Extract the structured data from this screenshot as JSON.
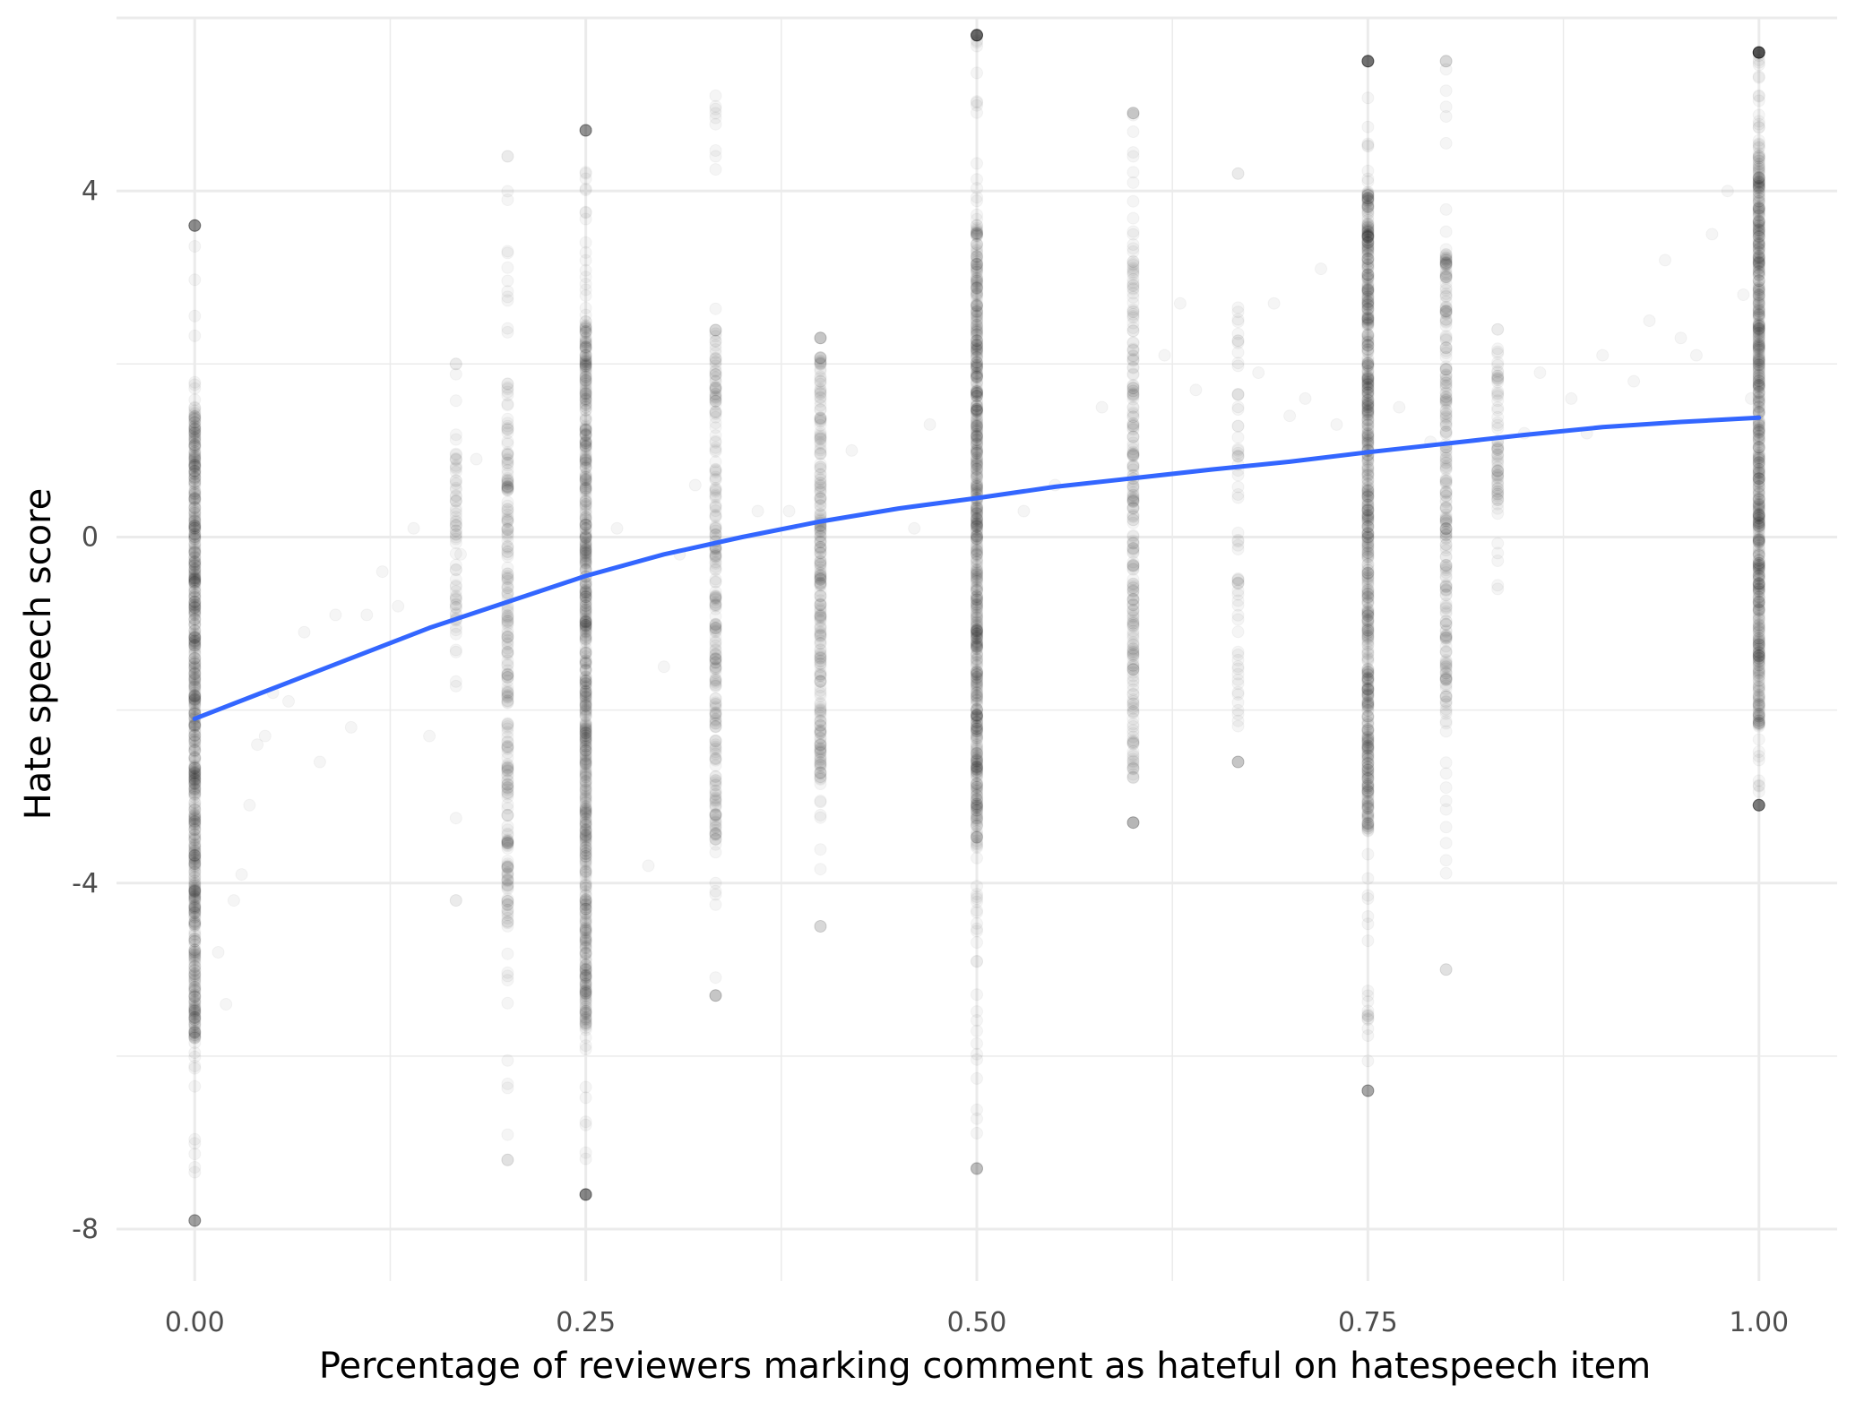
{
  "chart_data": {
    "type": "scatter",
    "title": "",
    "xlabel": "Percentage of reviewers marking comment as hateful on hatespeech item",
    "ylabel": "Hate speech score",
    "xlim": [
      -0.05,
      1.05
    ],
    "ylim": [
      -8.6,
      6.0
    ],
    "x_ticks": [
      0,
      0.25,
      0.5,
      0.75,
      1
    ],
    "x_tick_labels": [
      "0.00",
      "0.25",
      "0.50",
      "0.75",
      "1.00"
    ],
    "y_ticks": [
      -8,
      -4,
      0,
      4
    ],
    "y_tick_labels": [
      "-8",
      "-4",
      "0",
      "4"
    ],
    "grid": true,
    "legend": "none",
    "point_color": "#000000",
    "point_opacity": 0.04,
    "columns": [
      {
        "x": 0.0,
        "ymin": -7.9,
        "ymax": 3.6,
        "q1": -5.8,
        "q3": 1.5,
        "density": "high"
      },
      {
        "x": 0.167,
        "ymin": -4.2,
        "ymax": 2.0,
        "q1": -1.5,
        "q3": 1.0,
        "density": "low"
      },
      {
        "x": 0.2,
        "ymin": -7.2,
        "ymax": 4.4,
        "q1": -4.5,
        "q3": 1.8,
        "density": "medium"
      },
      {
        "x": 0.25,
        "ymin": -7.6,
        "ymax": 4.7,
        "q1": -5.7,
        "q3": 2.5,
        "density": "high"
      },
      {
        "x": 0.333,
        "ymin": -5.3,
        "ymax": 5.1,
        "q1": -3.5,
        "q3": 2.4,
        "density": "medium"
      },
      {
        "x": 0.4,
        "ymin": -4.5,
        "ymax": 2.3,
        "q1": -2.8,
        "q3": 2.1,
        "density": "medium"
      },
      {
        "x": 0.5,
        "ymin": -7.3,
        "ymax": 5.8,
        "q1": -3.6,
        "q3": 3.6,
        "density": "high"
      },
      {
        "x": 0.6,
        "ymin": -3.3,
        "ymax": 4.9,
        "q1": -2.8,
        "q3": 3.2,
        "density": "medium"
      },
      {
        "x": 0.667,
        "ymin": -2.6,
        "ymax": 4.2,
        "q1": -2.2,
        "q3": 2.7,
        "density": "low"
      },
      {
        "x": 0.75,
        "ymin": -6.4,
        "ymax": 5.5,
        "q1": -3.4,
        "q3": 4.0,
        "density": "high"
      },
      {
        "x": 0.8,
        "ymin": -5.0,
        "ymax": 5.5,
        "q1": -2.2,
        "q3": 3.3,
        "density": "medium"
      },
      {
        "x": 0.833,
        "ymin": -0.6,
        "ymax": 2.4,
        "q1": 0.3,
        "q3": 2.2,
        "density": "low"
      },
      {
        "x": 1.0,
        "ymin": -3.1,
        "ymax": 5.6,
        "q1": -2.2,
        "q3": 4.5,
        "density": "high"
      }
    ],
    "scattered_points": [
      [
        0.015,
        -4.8
      ],
      [
        0.02,
        -5.4
      ],
      [
        0.025,
        -4.2
      ],
      [
        0.03,
        -3.9
      ],
      [
        0.035,
        -3.1
      ],
      [
        0.04,
        -2.4
      ],
      [
        0.045,
        -2.3
      ],
      [
        0.05,
        -1.8
      ],
      [
        0.06,
        -1.9
      ],
      [
        0.07,
        -1.1
      ],
      [
        0.08,
        -2.6
      ],
      [
        0.09,
        -0.9
      ],
      [
        0.1,
        -2.2
      ],
      [
        0.11,
        -0.9
      ],
      [
        0.12,
        -0.4
      ],
      [
        0.13,
        -0.8
      ],
      [
        0.14,
        0.1
      ],
      [
        0.15,
        -2.3
      ],
      [
        0.17,
        -0.2
      ],
      [
        0.18,
        0.9
      ],
      [
        0.27,
        0.1
      ],
      [
        0.29,
        -3.8
      ],
      [
        0.3,
        -1.5
      ],
      [
        0.31,
        -0.2
      ],
      [
        0.32,
        0.6
      ],
      [
        0.36,
        0.3
      ],
      [
        0.38,
        0.3
      ],
      [
        0.42,
        1.0
      ],
      [
        0.46,
        0.1
      ],
      [
        0.47,
        1.3
      ],
      [
        0.53,
        0.3
      ],
      [
        0.55,
        0.6
      ],
      [
        0.58,
        1.5
      ],
      [
        0.62,
        2.1
      ],
      [
        0.63,
        2.7
      ],
      [
        0.64,
        1.7
      ],
      [
        0.68,
        1.9
      ],
      [
        0.69,
        2.7
      ],
      [
        0.7,
        1.4
      ],
      [
        0.71,
        1.6
      ],
      [
        0.72,
        3.1
      ],
      [
        0.73,
        1.3
      ],
      [
        0.77,
        1.5
      ],
      [
        0.79,
        1.1
      ],
      [
        0.85,
        1.2
      ],
      [
        0.86,
        1.9
      ],
      [
        0.88,
        1.6
      ],
      [
        0.89,
        1.2
      ],
      [
        0.9,
        2.1
      ],
      [
        0.92,
        1.8
      ],
      [
        0.93,
        2.5
      ],
      [
        0.94,
        3.2
      ],
      [
        0.95,
        2.3
      ],
      [
        0.96,
        2.1
      ],
      [
        0.97,
        3.5
      ],
      [
        0.98,
        4.0
      ],
      [
        0.99,
        2.8
      ],
      [
        0.995,
        1.6
      ]
    ],
    "smooth_line": {
      "color": "#3366ff",
      "x": [
        0.0,
        0.05,
        0.1,
        0.15,
        0.2,
        0.25,
        0.3,
        0.35,
        0.4,
        0.45,
        0.5,
        0.55,
        0.6,
        0.65,
        0.7,
        0.75,
        0.8,
        0.85,
        0.9,
        0.95,
        1.0
      ],
      "y": [
        -2.1,
        -1.75,
        -1.4,
        -1.05,
        -0.75,
        -0.45,
        -0.2,
        0.0,
        0.18,
        0.33,
        0.45,
        0.58,
        0.68,
        0.78,
        0.87,
        0.98,
        1.08,
        1.18,
        1.27,
        1.33,
        1.38
      ]
    }
  }
}
